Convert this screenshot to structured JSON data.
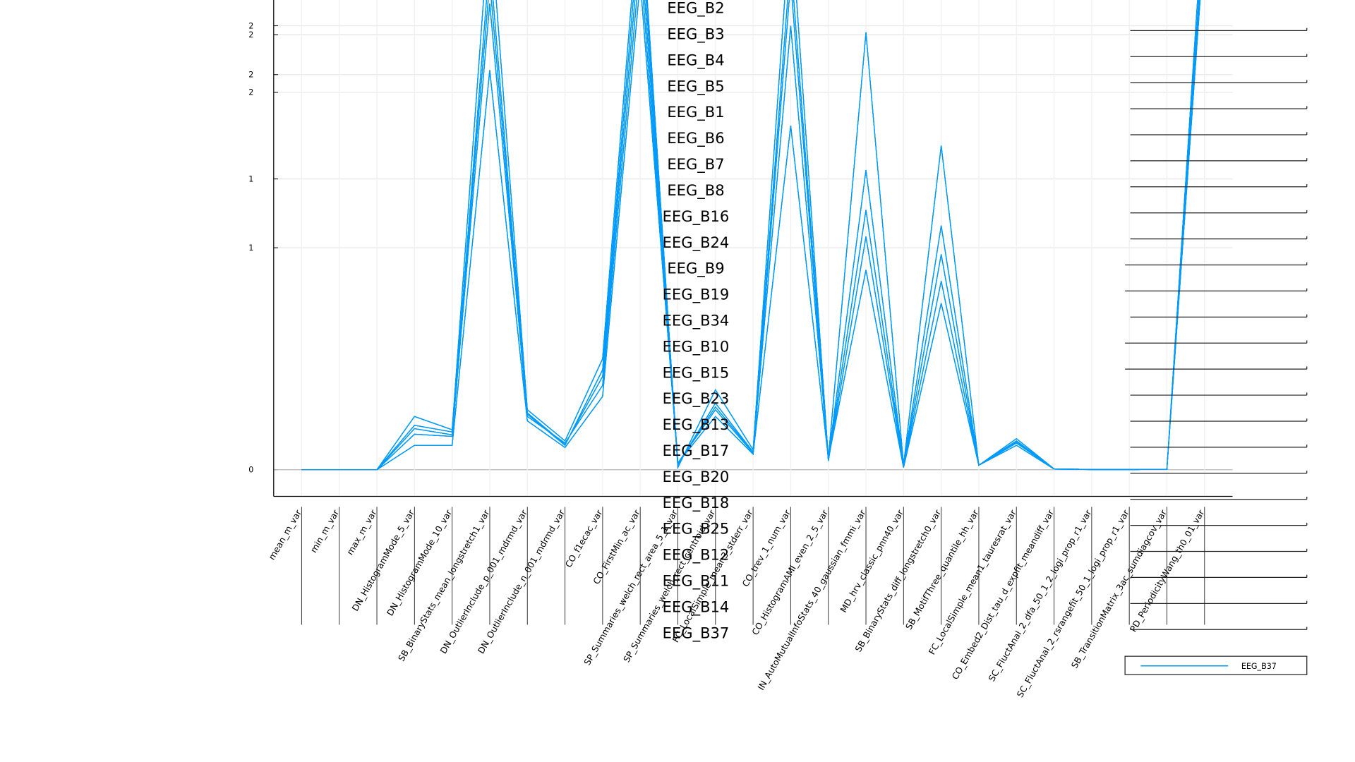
{
  "chart_data": {
    "type": "line",
    "categories": [
      "mean_m_var",
      "min_m_var",
      "max_m_var",
      "DN_HistogramMode_5_var",
      "DN_HistogramMode_10_var",
      "SB_BinaryStats_mean_longstretch1_var",
      "DN_OutlierInclude_p_001_mdrmd_var",
      "DN_OutlierInclude_n_001_mdrmd_var",
      "CO_f1ecac_var",
      "CO_FirstMin_ac_var",
      "SP_Summaries_welch_rect_area_5_1_var",
      "SP_Summaries_welch_rect_centroid_var",
      "FC_LocalSimple_mean3_stderr_var",
      "CO_trev_1_num_var",
      "CO_HistogramAMI_even_2_5_var",
      "IN_AutoMutualInfoStats_40_gaussian_fmmi_var",
      "MD_hrv_classic_pnn40_var",
      "SB_BinaryStats_diff_longstretch0_var",
      "SB_MotifThree_quantile_hh_var",
      "FC_LocalSimple_mean1_tauresrat_var",
      "CO_Embed2_Dist_tau_d_expfit_meandiff_var",
      "SC_FluctAnal_2_dfa_50_1_2_logi_prop_r1_var",
      "SC_FluctAnal_2_rsrangefit_50_1_logi_prop_r1_var",
      "SB_TransitionMatrix_3ac_sumdiagcov_var",
      "PD_PeriodicityWang_th0_01_var"
    ],
    "ylim": [
      -0.12,
      2.11
    ],
    "yticks": [
      0,
      1,
      {
        "value": 1.31,
        "label": "1"
      },
      {
        "value": 1.7,
        "label": "2"
      },
      {
        "value": 1.78,
        "label": "2"
      },
      {
        "value": 1.96,
        "label": "2"
      },
      {
        "value": 2.0,
        "label": "2"
      }
    ],
    "grid": true,
    "series": [
      {
        "name": "EEG_B2",
        "color": "#009afa",
        "values": [
          0,
          0,
          0,
          0.185,
          0.157,
          2.3,
          0.256,
          0.114,
          0.42,
          2.4,
          0.028,
          0.283,
          0.079,
          2.3,
          0.047,
          1.17,
          0.016,
          0.97,
          0.02,
          0.126,
          0.004,
          0.001,
          0.001,
          0.002,
          2.5
        ]
      },
      {
        "name": "EEG_B3",
        "color": "#009afa",
        "values": [
          0,
          0,
          0,
          0.24,
          0.18,
          2.5,
          0.27,
          0.13,
          0.5,
          2.6,
          0.01,
          0.36,
          0.09,
          2.5,
          0.05,
          1.97,
          0.02,
          1.46,
          0.02,
          0.14,
          0.004,
          0.001,
          0.001,
          0.002,
          2.6
        ]
      },
      {
        "name": "EEG_B4",
        "color": "#009afa",
        "values": [
          0,
          0,
          0,
          0.11,
          0.11,
          1.8,
          0.22,
          0.1,
          0.33,
          2.2,
          0.03,
          0.24,
          0.07,
          1.55,
          0.05,
          0.9,
          0.01,
          0.75,
          0.02,
          0.11,
          0.003,
          0.001,
          0.001,
          0.002,
          2.4
        ]
      },
      {
        "name": "EEG_B5",
        "color": "#009afa",
        "values": [
          0,
          0,
          0,
          0.16,
          0.15,
          2.1,
          0.24,
          0.12,
          0.38,
          2.3,
          0.02,
          0.3,
          0.08,
          2.0,
          0.05,
          1.35,
          0.02,
          1.1,
          0.02,
          0.12,
          0.004,
          0.001,
          0.001,
          0.002,
          2.5
        ]
      },
      {
        "name": "EEG_B1",
        "color": "#009afa",
        "values": [
          0,
          0,
          0,
          0.2,
          0.17,
          2.2,
          0.25,
          0.11,
          0.45,
          2.5,
          0.03,
          0.27,
          0.075,
          2.2,
          0.04,
          1.05,
          0.015,
          0.85,
          0.02,
          0.13,
          0.004,
          0.001,
          0.001,
          0.002,
          2.45
        ]
      },
      {
        "name": "EEG_B6",
        "color": "#009afa",
        "values": [
          0,
          0,
          0,
          0.185,
          0.157,
          2.3,
          0.256,
          0.114,
          0.42,
          2.4,
          0.028,
          0.283,
          0.079,
          2.3,
          0.047,
          1.17,
          0.016,
          0.97,
          0.02,
          0.126,
          0.004,
          0.001,
          0.001,
          0.002,
          2.5
        ]
      },
      {
        "name": "EEG_B7",
        "color": "#009afa",
        "values": [
          0,
          0,
          0,
          0.24,
          0.18,
          2.5,
          0.27,
          0.13,
          0.5,
          2.6,
          0.01,
          0.36,
          0.09,
          2.5,
          0.05,
          1.97,
          0.02,
          1.46,
          0.02,
          0.14,
          0.004,
          0.001,
          0.001,
          0.002,
          2.6
        ]
      },
      {
        "name": "EEG_B8",
        "color": "#009afa",
        "values": [
          0,
          0,
          0,
          0.11,
          0.11,
          1.8,
          0.22,
          0.1,
          0.33,
          2.2,
          0.03,
          0.24,
          0.07,
          1.55,
          0.05,
          0.9,
          0.01,
          0.75,
          0.02,
          0.11,
          0.003,
          0.001,
          0.001,
          0.002,
          2.4
        ]
      },
      {
        "name": "EEG_B16",
        "color": "#009afa",
        "values": [
          0,
          0,
          0,
          0.16,
          0.15,
          2.1,
          0.24,
          0.12,
          0.38,
          2.3,
          0.02,
          0.3,
          0.08,
          2.0,
          0.05,
          1.35,
          0.02,
          1.1,
          0.02,
          0.12,
          0.004,
          0.001,
          0.001,
          0.002,
          2.5
        ]
      },
      {
        "name": "EEG_B24",
        "color": "#009afa",
        "values": [
          0,
          0,
          0,
          0.2,
          0.17,
          2.2,
          0.25,
          0.11,
          0.45,
          2.5,
          0.03,
          0.27,
          0.075,
          2.2,
          0.04,
          1.05,
          0.015,
          0.85,
          0.02,
          0.13,
          0.004,
          0.001,
          0.001,
          0.002,
          2.45
        ]
      },
      {
        "name": "EEG_B9",
        "color": "#009afa",
        "values": [
          0,
          0,
          0,
          0.185,
          0.157,
          2.3,
          0.256,
          0.114,
          0.42,
          2.4,
          0.028,
          0.283,
          0.079,
          2.3,
          0.047,
          1.17,
          0.016,
          0.97,
          0.02,
          0.126,
          0.004,
          0.001,
          0.001,
          0.002,
          2.5
        ]
      },
      {
        "name": "EEG_B19",
        "color": "#009afa",
        "values": [
          0,
          0,
          0,
          0.24,
          0.18,
          2.5,
          0.27,
          0.13,
          0.5,
          2.6,
          0.01,
          0.36,
          0.09,
          2.5,
          0.05,
          1.97,
          0.02,
          1.46,
          0.02,
          0.14,
          0.004,
          0.001,
          0.001,
          0.002,
          2.6
        ]
      },
      {
        "name": "EEG_B34",
        "color": "#009afa",
        "values": [
          0,
          0,
          0,
          0.11,
          0.11,
          1.8,
          0.22,
          0.1,
          0.33,
          2.2,
          0.03,
          0.24,
          0.07,
          1.55,
          0.05,
          0.9,
          0.01,
          0.75,
          0.02,
          0.11,
          0.003,
          0.001,
          0.001,
          0.002,
          2.4
        ]
      },
      {
        "name": "EEG_B10",
        "color": "#009afa",
        "values": [
          0,
          0,
          0,
          0.16,
          0.15,
          2.1,
          0.24,
          0.12,
          0.38,
          2.3,
          0.02,
          0.3,
          0.08,
          2.0,
          0.05,
          1.35,
          0.02,
          1.1,
          0.02,
          0.12,
          0.004,
          0.001,
          0.001,
          0.002,
          2.5
        ]
      },
      {
        "name": "EEG_B15",
        "color": "#009afa",
        "values": [
          0,
          0,
          0,
          0.2,
          0.17,
          2.2,
          0.25,
          0.11,
          0.45,
          2.5,
          0.03,
          0.27,
          0.075,
          2.2,
          0.04,
          1.05,
          0.015,
          0.85,
          0.02,
          0.13,
          0.004,
          0.001,
          0.001,
          0.002,
          2.45
        ]
      },
      {
        "name": "EEG_B23",
        "color": "#009afa",
        "values": [
          0,
          0,
          0,
          0.185,
          0.157,
          2.3,
          0.256,
          0.114,
          0.42,
          2.4,
          0.028,
          0.283,
          0.079,
          2.3,
          0.047,
          1.17,
          0.016,
          0.97,
          0.02,
          0.126,
          0.004,
          0.001,
          0.001,
          0.002,
          2.5
        ]
      },
      {
        "name": "EEG_B13",
        "color": "#009afa",
        "values": [
          0,
          0,
          0,
          0.24,
          0.18,
          2.5,
          0.27,
          0.13,
          0.5,
          2.6,
          0.01,
          0.36,
          0.09,
          2.5,
          0.05,
          1.97,
          0.02,
          1.46,
          0.02,
          0.14,
          0.004,
          0.001,
          0.001,
          0.002,
          2.6
        ]
      },
      {
        "name": "EEG_B17",
        "color": "#009afa",
        "values": [
          0,
          0,
          0,
          0.11,
          0.11,
          1.8,
          0.22,
          0.1,
          0.33,
          2.2,
          0.03,
          0.24,
          0.07,
          1.55,
          0.05,
          0.9,
          0.01,
          0.75,
          0.02,
          0.11,
          0.003,
          0.001,
          0.001,
          0.002,
          2.4
        ]
      },
      {
        "name": "EEG_B20",
        "color": "#009afa",
        "values": [
          0,
          0,
          0,
          0.16,
          0.15,
          2.1,
          0.24,
          0.12,
          0.38,
          2.3,
          0.02,
          0.3,
          0.08,
          2.0,
          0.05,
          1.35,
          0.02,
          1.1,
          0.02,
          0.12,
          0.004,
          0.001,
          0.001,
          0.002,
          2.5
        ]
      },
      {
        "name": "EEG_B18",
        "color": "#009afa",
        "values": [
          0,
          0,
          0,
          0.2,
          0.17,
          2.2,
          0.25,
          0.11,
          0.45,
          2.5,
          0.03,
          0.27,
          0.075,
          2.2,
          0.04,
          1.05,
          0.015,
          0.85,
          0.02,
          0.13,
          0.004,
          0.001,
          0.001,
          0.002,
          2.45
        ]
      },
      {
        "name": "EEG_B25",
        "color": "#009afa",
        "values": [
          0,
          0,
          0,
          0.185,
          0.157,
          2.3,
          0.256,
          0.114,
          0.42,
          2.4,
          0.028,
          0.283,
          0.079,
          2.3,
          0.047,
          1.17,
          0.016,
          0.97,
          0.02,
          0.126,
          0.004,
          0.001,
          0.001,
          0.002,
          2.5
        ]
      },
      {
        "name": "EEG_B12",
        "color": "#009afa",
        "values": [
          0,
          0,
          0,
          0.24,
          0.18,
          2.5,
          0.27,
          0.13,
          0.5,
          2.6,
          0.01,
          0.36,
          0.09,
          2.5,
          0.05,
          1.97,
          0.02,
          1.46,
          0.02,
          0.14,
          0.004,
          0.001,
          0.001,
          0.002,
          2.6
        ]
      },
      {
        "name": "EEG_B11",
        "color": "#009afa",
        "values": [
          0,
          0,
          0,
          0.11,
          0.11,
          1.8,
          0.22,
          0.1,
          0.33,
          2.2,
          0.03,
          0.24,
          0.07,
          1.55,
          0.05,
          0.9,
          0.01,
          0.75,
          0.02,
          0.11,
          0.003,
          0.001,
          0.001,
          0.002,
          2.4
        ]
      },
      {
        "name": "EEG_B14",
        "color": "#009afa",
        "values": [
          0,
          0,
          0,
          0.16,
          0.15,
          2.1,
          0.24,
          0.12,
          0.38,
          2.3,
          0.02,
          0.3,
          0.08,
          2.0,
          0.05,
          1.35,
          0.02,
          1.1,
          0.02,
          0.12,
          0.004,
          0.001,
          0.001,
          0.002,
          2.5
        ]
      },
      {
        "name": "EEG_B37",
        "color": "#009afa",
        "values": [
          0,
          0,
          0,
          0.2,
          0.17,
          2.2,
          0.25,
          0.11,
          0.45,
          2.5,
          0.03,
          0.27,
          0.075,
          2.2,
          0.04,
          1.05,
          0.015,
          0.85,
          0.02,
          0.13,
          0.004,
          0.001,
          0.001,
          0.002,
          2.45
        ]
      }
    ]
  }
}
